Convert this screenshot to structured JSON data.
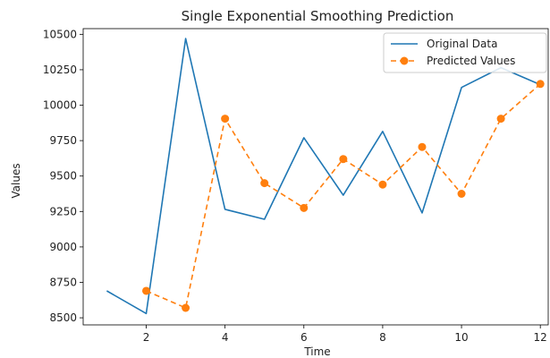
{
  "chart_data": {
    "type": "line",
    "title": "Single Exponential Smoothing Prediction",
    "xlabel": "Time",
    "ylabel": "Values",
    "xlim": [
      0.4,
      12.2
    ],
    "ylim": [
      8450,
      10540
    ],
    "xticks": [
      2,
      4,
      6,
      8,
      10,
      12
    ],
    "yticks": [
      8500,
      8750,
      9000,
      9250,
      9500,
      9750,
      10000,
      10250,
      10500
    ],
    "grid": false,
    "legend_position": "top-right",
    "series": [
      {
        "name": "Original Data",
        "color": "#1f77b4",
        "style": "solid",
        "marker": "none",
        "x": [
          1,
          2,
          3,
          4,
          5,
          6,
          7,
          8,
          9,
          10,
          11,
          12
        ],
        "y": [
          8690,
          8530,
          10470,
          9265,
          9195,
          9770,
          9365,
          9815,
          9240,
          10125,
          10265,
          10145
        ]
      },
      {
        "name": "Predicted Values",
        "color": "#ff7f0e",
        "style": "dashed",
        "marker": "circle",
        "x": [
          2,
          3,
          4,
          5,
          6,
          7,
          8,
          9,
          10,
          11,
          12
        ],
        "y": [
          8690,
          8570,
          9905,
          9450,
          9275,
          9620,
          9440,
          9705,
          9375,
          9905,
          10150
        ]
      }
    ]
  }
}
